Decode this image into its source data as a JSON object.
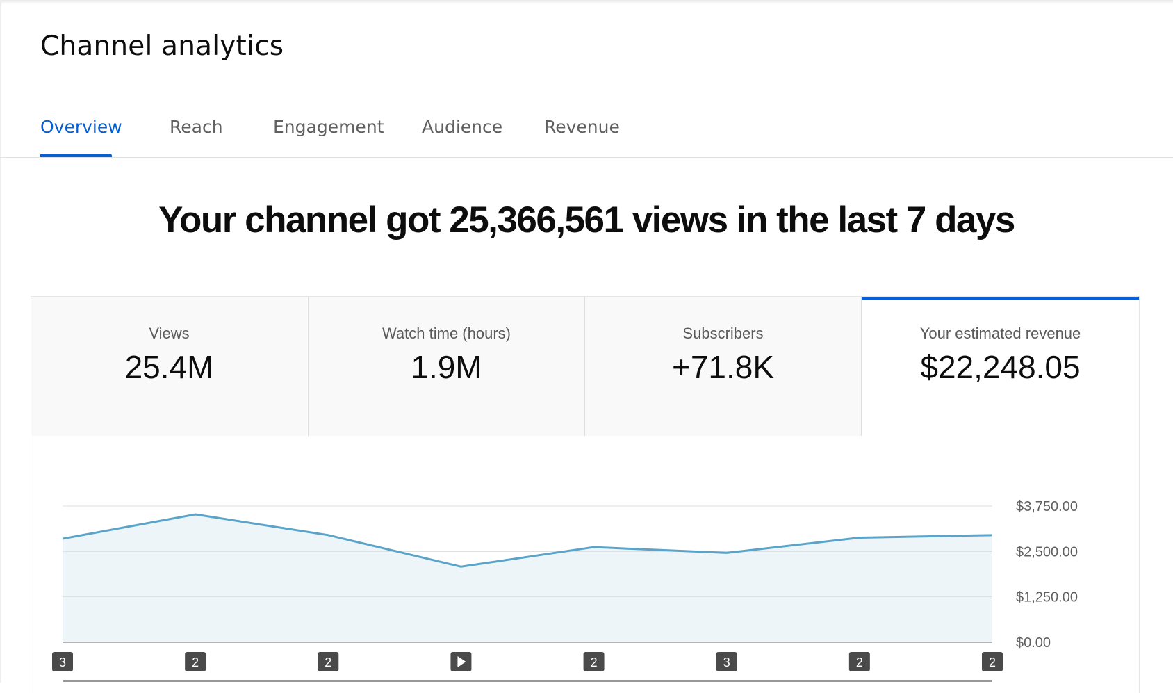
{
  "header": {
    "title": "Channel analytics"
  },
  "tabs": [
    {
      "label": "Overview",
      "active": true
    },
    {
      "label": "Reach",
      "active": false
    },
    {
      "label": "Engagement",
      "active": false
    },
    {
      "label": "Audience",
      "active": false
    },
    {
      "label": "Revenue",
      "active": false
    }
  ],
  "summary": {
    "headline": "Your channel got 25,366,561 views in the last 7 days"
  },
  "metrics": [
    {
      "label": "Views",
      "value": "25.4M",
      "selected": false
    },
    {
      "label": "Watch time (hours)",
      "value": "1.9M",
      "selected": false
    },
    {
      "label": "Subscribers",
      "value": "+71.8K",
      "selected": false
    },
    {
      "label": "Your estimated revenue",
      "value": "$22,248.05",
      "selected": true
    }
  ],
  "colors": {
    "accent": "#065fd4",
    "line": "#5aa3c9",
    "area": "#eef5f9",
    "marker": "#4a4a4a"
  },
  "chart_data": {
    "type": "area",
    "series": [
      {
        "values": [
          2850,
          3520,
          2950,
          2080,
          2620,
          2460,
          2880,
          2950
        ]
      }
    ],
    "ylim": [
      0,
      3750
    ],
    "yticks": [
      "$3,750.00",
      "$2,500.00",
      "$1,250.00",
      "$0.00"
    ],
    "grid": true,
    "markers": [
      "3",
      "2",
      "2",
      "play",
      "2",
      "3",
      "2",
      "2"
    ]
  }
}
